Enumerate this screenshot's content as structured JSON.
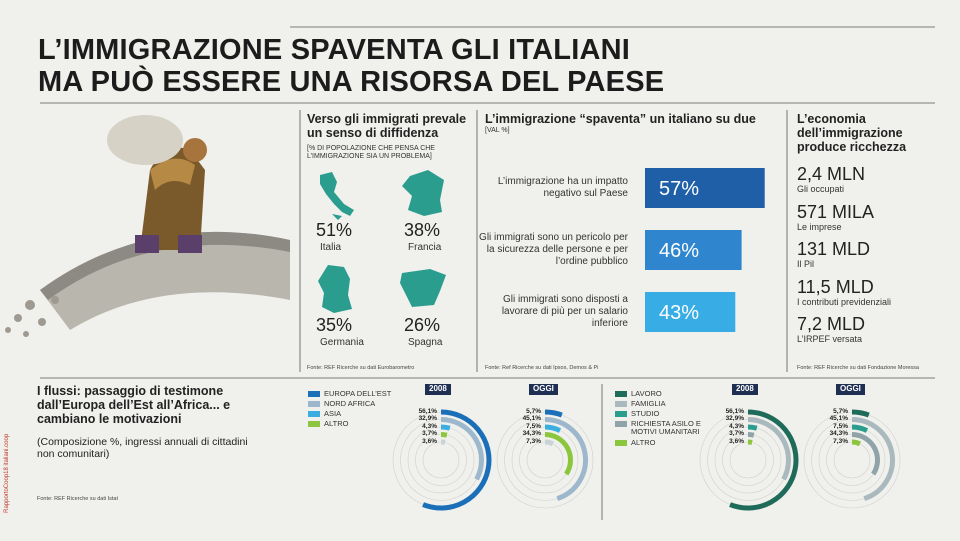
{
  "title_lines": [
    "L’IMMIGRAZIONE SPAVENTA GLI ITALIANI",
    "MA PUÒ ESSERE UNA RISORSA DEL PAESE"
  ],
  "diffidenza": {
    "title": "Verso gli immigrati prevale un senso di diffidenza",
    "subtitle": "[% DI POPOLAZIONE CHE PENSA CHE L’IMMIGRAZIONE SIA UN PROBLEMA]",
    "items": [
      {
        "value": "51%",
        "label": "Italia"
      },
      {
        "value": "38%",
        "label": "Francia"
      },
      {
        "value": "35%",
        "label": "Germania"
      },
      {
        "value": "26%",
        "label": "Spagna"
      }
    ],
    "source": "Fonte: REF Ricerche su dati Eurobarometro"
  },
  "economia": {
    "title": "L’economia dell’immigrazione produce ricchezza",
    "items": [
      {
        "value": "2,4 MLN",
        "label": "Gli occupati"
      },
      {
        "value": "571 MILA",
        "label": "Le imprese"
      },
      {
        "value": "131 MLD",
        "label": "Il Pil"
      },
      {
        "value": "11,5 MLD",
        "label": "I contributi previdenziali"
      },
      {
        "value": "7,2 MLD",
        "label": "L’IRPEF versata"
      }
    ],
    "source": "Fonte: REF Ricerche  su dati Fondazione Moressa"
  },
  "flussi": {
    "title": "I flussi: passaggio di testimone dall’Europa dell’Est all’Africa... e cambiano le motivazioni",
    "subtitle": "(Composizione %, ingressi annuali di cittadini non comunitari)",
    "source": "Fonte: REF Ricerche su dati Istat"
  },
  "side_label": "RapportoCoop18 italiani.coop",
  "chart_data": [
    {
      "type": "bar",
      "title": "L’immigrazione “spaventa” un italiano su due",
      "subtitle": "[VAL %]",
      "categories": [
        "L’immigrazione ha un impatto negativo sul Paese",
        "Gli immigrati sono un pericolo per la sicurezza delle persone e per l’ordine pubblico",
        "Gli immigrati sono disposti a lavorare di più per un salario inferiore"
      ],
      "values": [
        57,
        46,
        43
      ],
      "value_labels": [
        "57%",
        "46%",
        "43%"
      ],
      "colors": [
        "#1f5fa8",
        "#2f86cf",
        "#38ade5"
      ],
      "source": "Fonte: Ref Ricerche su dati Ipsos, Demos & Pi"
    },
    {
      "type": "radial",
      "categories": [
        "EUROPA DELL’EST",
        "NORD AFRICA",
        "ASIA",
        "ALTRO",
        null
      ],
      "colors": [
        "#1a6fb8",
        "#9db7cc",
        "#3aaee0",
        "#8cc63f",
        "#c9d3d8"
      ],
      "series": [
        {
          "name": "2008",
          "values": [
            56.1,
            32.9,
            4.3,
            3.7,
            3.6
          ],
          "value_labels": [
            "56,1%",
            "32,9%",
            "4,3%",
            "3,7%",
            "3,6%"
          ]
        },
        {
          "name": "OGGI",
          "values": [
            5.7,
            45.1,
            7.5,
            34.3,
            7.3
          ],
          "value_labels": [
            "5,7%",
            "45,1%",
            "7,5%",
            "34,3%",
            "7,3%"
          ]
        }
      ]
    },
    {
      "type": "radial",
      "categories": [
        "LAVORO",
        "FAMIGLIA",
        "STUDIO",
        "RICHIESTA ASILO E MOTIVI UMANITARI",
        "ALTRO"
      ],
      "colors": [
        "#1e6b5a",
        "#a9b9bd",
        "#2a9d8f",
        "#8fa3a8",
        "#8cc63f"
      ],
      "series": [
        {
          "name": "2008",
          "values": [
            56.1,
            32.9,
            4.3,
            3.7,
            3.6
          ],
          "value_labels": [
            "56,1%",
            "32,9%",
            "4,3%",
            "3,7%",
            "3,6%"
          ]
        },
        {
          "name": "OGGI",
          "values": [
            5.7,
            45.1,
            7.5,
            34.3,
            7.3
          ],
          "value_labels": [
            "5,7%",
            "45,1%",
            "7,5%",
            "34,3%",
            "7,3%"
          ]
        }
      ]
    }
  ]
}
